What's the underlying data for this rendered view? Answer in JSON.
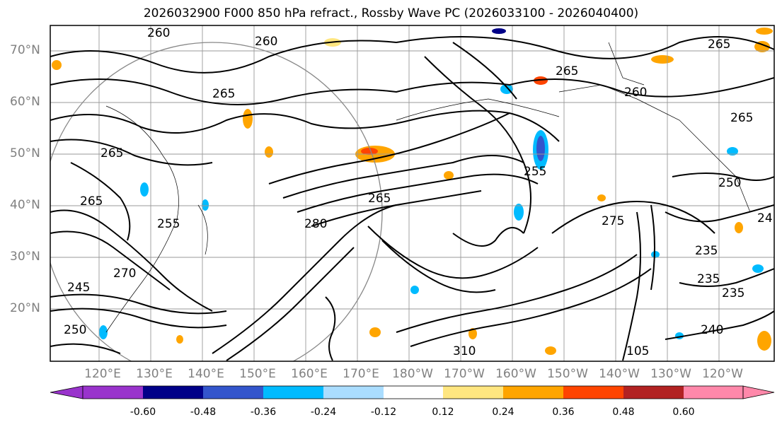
{
  "title": "2026032900 F000 850 hPa refract., Rossby Wave PC (2026033100 - 2026040400)",
  "lat_labels": [
    "70°N",
    "60°N",
    "50°N",
    "40°N",
    "30°N",
    "20°N"
  ],
  "lon_labels": [
    "120°E",
    "130°E",
    "140°E",
    "150°E",
    "160°E",
    "170°E",
    "180°W",
    "170°W",
    "160°W",
    "150°W",
    "140°W",
    "130°W",
    "120°W"
  ],
  "contour_labels": [
    "260",
    "260",
    "265",
    "265",
    "255",
    "265",
    "260",
    "265",
    "265",
    "255",
    "250",
    "265",
    "275",
    "235",
    "235",
    "235",
    "240",
    "105",
    "280",
    "245",
    "310",
    "250",
    "24",
    "265",
    "270"
  ],
  "colorbar": {
    "colors": [
      "#9933cc",
      "#000088",
      "#3355cc",
      "#00bbff",
      "#aaddff",
      "#ffffff",
      "#ffe680",
      "#ffa500",
      "#ff4400",
      "#b22222",
      "#ff88aa"
    ],
    "tick_labels": [
      "-0.60",
      "-0.48",
      "-0.36",
      "-0.24",
      "-0.12",
      "0.12",
      "0.24",
      "0.36",
      "0.48",
      "0.60"
    ]
  }
}
